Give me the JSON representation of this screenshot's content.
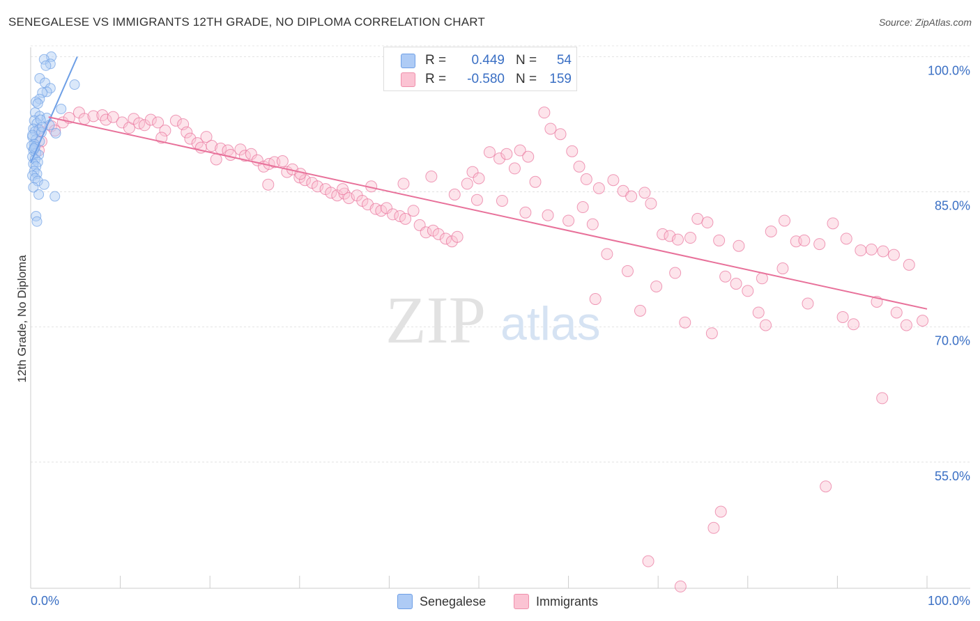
{
  "title": "SENEGALESE VS IMMIGRANTS 12TH GRADE, NO DIPLOMA CORRELATION CHART",
  "source": "Source: ZipAtlas.com",
  "watermark": {
    "zip": "ZIP",
    "atlas": "atlas"
  },
  "legend_stats": [
    {
      "r_label": "R =",
      "r_value": "0.449",
      "n_label": "N =",
      "n_value": "54",
      "fill": "#aecbf5",
      "stroke": "#6e9fe6"
    },
    {
      "r_label": "R =",
      "r_value": "-0.580",
      "n_label": "N =",
      "n_value": "159",
      "fill": "#fbc3d3",
      "stroke": "#ef8fab"
    }
  ],
  "bottom_legend": [
    {
      "label": "Senegalese",
      "fill": "#aecbf5",
      "stroke": "#6e9fe6"
    },
    {
      "label": "Immigrants",
      "fill": "#fbc3d3",
      "stroke": "#ef8fab"
    }
  ],
  "chart_data": {
    "type": "scatter",
    "title": "SENEGALESE VS IMMIGRANTS 12TH GRADE, NO DIPLOMA CORRELATION CHART",
    "xlabel": "",
    "ylabel": "12th Grade, No Diploma",
    "xlim": [
      0,
      100
    ],
    "ylim": [
      41,
      101.5
    ],
    "x_tick_labels": [
      "0.0%",
      "100.0%"
    ],
    "y_ticks": [
      {
        "value": 100,
        "label": "100.0%"
      },
      {
        "value": 85,
        "label": "85.0%"
      },
      {
        "value": 70,
        "label": "70.0%"
      },
      {
        "value": 55,
        "label": "55.0%"
      }
    ],
    "grid": true,
    "series": [
      {
        "name": "Senegalese",
        "color": "#6e9fe6",
        "fill": "#aecbf5",
        "trend": {
          "x": [
            0.0,
            5.2
          ],
          "y": [
            88.2,
            100.0
          ]
        },
        "points": [
          [
            2.3,
            100.0
          ],
          [
            1.5,
            99.7
          ],
          [
            2.2,
            99.2
          ],
          [
            1.7,
            99.0
          ],
          [
            4.9,
            96.9
          ],
          [
            1.0,
            97.6
          ],
          [
            1.6,
            97.1
          ],
          [
            2.2,
            96.5
          ],
          [
            1.8,
            96.1
          ],
          [
            1.3,
            96.0
          ],
          [
            1.0,
            95.3
          ],
          [
            0.6,
            95.0
          ],
          [
            3.4,
            94.2
          ],
          [
            0.5,
            93.8
          ],
          [
            1.0,
            93.4
          ],
          [
            1.8,
            93.2
          ],
          [
            0.4,
            92.9
          ],
          [
            0.7,
            92.6
          ],
          [
            2.1,
            92.4
          ],
          [
            0.3,
            92.0
          ],
          [
            0.9,
            91.9
          ],
          [
            0.5,
            91.7
          ],
          [
            1.2,
            91.6
          ],
          [
            2.8,
            91.5
          ],
          [
            0.2,
            91.1
          ],
          [
            0.6,
            90.8
          ],
          [
            1.0,
            90.6
          ],
          [
            0.4,
            90.3
          ],
          [
            0.1,
            90.1
          ],
          [
            0.3,
            89.6
          ],
          [
            0.6,
            89.3
          ],
          [
            0.9,
            89.1
          ],
          [
            0.2,
            88.9
          ],
          [
            0.5,
            88.6
          ],
          [
            0.8,
            88.3
          ],
          [
            0.3,
            88.1
          ],
          [
            0.6,
            87.8
          ],
          [
            0.4,
            87.3
          ],
          [
            0.7,
            87.0
          ],
          [
            0.2,
            86.8
          ],
          [
            0.5,
            86.5
          ],
          [
            0.8,
            86.2
          ],
          [
            1.5,
            85.8
          ],
          [
            0.3,
            85.5
          ],
          [
            2.7,
            84.5
          ],
          [
            0.9,
            84.7
          ],
          [
            0.6,
            82.3
          ],
          [
            0.7,
            81.7
          ],
          [
            0.2,
            91.3
          ],
          [
            0.5,
            90.0
          ],
          [
            1.1,
            93.0
          ],
          [
            0.8,
            94.8
          ],
          [
            1.3,
            92.2
          ],
          [
            0.4,
            89.8
          ]
        ]
      },
      {
        "name": "Immigrants",
        "color": "#e8719a",
        "fill": "#fbc3d3",
        "trend": {
          "x": [
            2.0,
            100.0
          ],
          "y": [
            93.3,
            72.0
          ]
        },
        "points": [
          [
            1.0,
            91.8
          ],
          [
            1.2,
            90.6
          ],
          [
            0.9,
            89.6
          ],
          [
            2.3,
            92.3
          ],
          [
            2.7,
            91.8
          ],
          [
            3.6,
            92.7
          ],
          [
            4.3,
            93.2
          ],
          [
            5.4,
            93.8
          ],
          [
            6.0,
            93.1
          ],
          [
            7.0,
            93.4
          ],
          [
            8.0,
            93.5
          ],
          [
            8.4,
            93.0
          ],
          [
            9.2,
            93.3
          ],
          [
            10.2,
            92.7
          ],
          [
            11.0,
            92.1
          ],
          [
            11.5,
            93.1
          ],
          [
            12.1,
            92.6
          ],
          [
            12.7,
            92.4
          ],
          [
            13.4,
            93.0
          ],
          [
            14.2,
            92.7
          ],
          [
            15.0,
            91.8
          ],
          [
            14.6,
            91.0
          ],
          [
            16.2,
            92.9
          ],
          [
            17.0,
            92.5
          ],
          [
            17.4,
            91.6
          ],
          [
            17.8,
            90.9
          ],
          [
            18.6,
            90.4
          ],
          [
            19.0,
            89.9
          ],
          [
            19.6,
            91.1
          ],
          [
            20.2,
            90.1
          ],
          [
            20.7,
            88.6
          ],
          [
            21.2,
            89.8
          ],
          [
            22.0,
            89.6
          ],
          [
            22.3,
            89.1
          ],
          [
            23.4,
            89.7
          ],
          [
            23.9,
            89.0
          ],
          [
            24.6,
            89.2
          ],
          [
            25.3,
            88.5
          ],
          [
            26.0,
            87.8
          ],
          [
            26.6,
            88.1
          ],
          [
            27.2,
            88.3
          ],
          [
            28.1,
            88.4
          ],
          [
            28.6,
            87.2
          ],
          [
            29.2,
            87.5
          ],
          [
            30.0,
            86.6
          ],
          [
            30.6,
            86.3
          ],
          [
            31.4,
            86.0
          ],
          [
            32.0,
            85.6
          ],
          [
            32.9,
            85.3
          ],
          [
            33.5,
            84.9
          ],
          [
            34.2,
            84.6
          ],
          [
            35.0,
            84.8
          ],
          [
            35.5,
            84.3
          ],
          [
            36.4,
            84.6
          ],
          [
            37.0,
            84.0
          ],
          [
            37.6,
            83.6
          ],
          [
            38.5,
            83.1
          ],
          [
            39.1,
            82.9
          ],
          [
            39.7,
            83.2
          ],
          [
            40.4,
            82.5
          ],
          [
            41.2,
            82.3
          ],
          [
            41.8,
            82.0
          ],
          [
            42.7,
            82.9
          ],
          [
            43.4,
            81.3
          ],
          [
            44.1,
            80.5
          ],
          [
            44.9,
            80.7
          ],
          [
            45.5,
            80.3
          ],
          [
            46.3,
            79.8
          ],
          [
            47.0,
            79.5
          ],
          [
            47.6,
            80.0
          ],
          [
            48.7,
            85.9
          ],
          [
            49.3,
            87.2
          ],
          [
            50.0,
            86.5
          ],
          [
            51.2,
            89.4
          ],
          [
            52.3,
            88.7
          ],
          [
            53.1,
            89.2
          ],
          [
            54.0,
            87.6
          ],
          [
            54.6,
            89.6
          ],
          [
            55.5,
            88.9
          ],
          [
            56.3,
            86.1
          ],
          [
            57.3,
            93.8
          ],
          [
            58.0,
            92.0
          ],
          [
            59.1,
            91.4
          ],
          [
            60.4,
            89.5
          ],
          [
            61.2,
            87.8
          ],
          [
            62.0,
            86.4
          ],
          [
            63.4,
            85.4
          ],
          [
            65.0,
            86.3
          ],
          [
            66.1,
            85.1
          ],
          [
            67.0,
            84.5
          ],
          [
            68.5,
            84.9
          ],
          [
            69.2,
            83.7
          ],
          [
            70.5,
            80.3
          ],
          [
            71.3,
            80.1
          ],
          [
            72.2,
            79.7
          ],
          [
            73.6,
            79.9
          ],
          [
            74.4,
            82.0
          ],
          [
            75.5,
            81.6
          ],
          [
            76.8,
            79.6
          ],
          [
            77.5,
            75.6
          ],
          [
            78.7,
            74.8
          ],
          [
            80.0,
            74.0
          ],
          [
            81.2,
            71.6
          ],
          [
            82.0,
            70.2
          ],
          [
            82.6,
            80.6
          ],
          [
            84.1,
            81.8
          ],
          [
            85.4,
            79.5
          ],
          [
            86.3,
            79.6
          ],
          [
            88.0,
            79.2
          ],
          [
            89.5,
            81.5
          ],
          [
            91.0,
            79.8
          ],
          [
            92.6,
            78.5
          ],
          [
            93.8,
            78.6
          ],
          [
            95.1,
            78.4
          ],
          [
            96.3,
            78.0
          ],
          [
            98.0,
            76.9
          ],
          [
            99.5,
            70.7
          ],
          [
            26.5,
            85.8
          ],
          [
            30.1,
            87.0
          ],
          [
            34.8,
            85.3
          ],
          [
            38.0,
            85.6
          ],
          [
            41.6,
            85.9
          ],
          [
            44.7,
            86.7
          ],
          [
            47.3,
            84.7
          ],
          [
            49.8,
            84.1
          ],
          [
            52.6,
            84.0
          ],
          [
            55.2,
            82.7
          ],
          [
            57.7,
            82.4
          ],
          [
            60.0,
            81.8
          ],
          [
            61.6,
            83.3
          ],
          [
            62.7,
            81.4
          ],
          [
            64.3,
            78.1
          ],
          [
            66.6,
            76.2
          ],
          [
            69.8,
            74.5
          ],
          [
            71.9,
            76.0
          ],
          [
            73.0,
            70.5
          ],
          [
            76.0,
            69.3
          ],
          [
            63.0,
            73.1
          ],
          [
            68.0,
            71.8
          ],
          [
            79.0,
            79.0
          ],
          [
            81.6,
            75.4
          ],
          [
            83.9,
            76.5
          ],
          [
            86.7,
            72.6
          ],
          [
            90.6,
            71.1
          ],
          [
            91.8,
            70.3
          ],
          [
            94.4,
            72.8
          ],
          [
            96.6,
            71.6
          ],
          [
            97.7,
            70.2
          ],
          [
            95.0,
            62.1
          ],
          [
            88.7,
            52.3
          ],
          [
            77.0,
            49.5
          ],
          [
            76.2,
            47.7
          ],
          [
            68.9,
            44.0
          ],
          [
            72.5,
            41.2
          ]
        ]
      }
    ]
  }
}
